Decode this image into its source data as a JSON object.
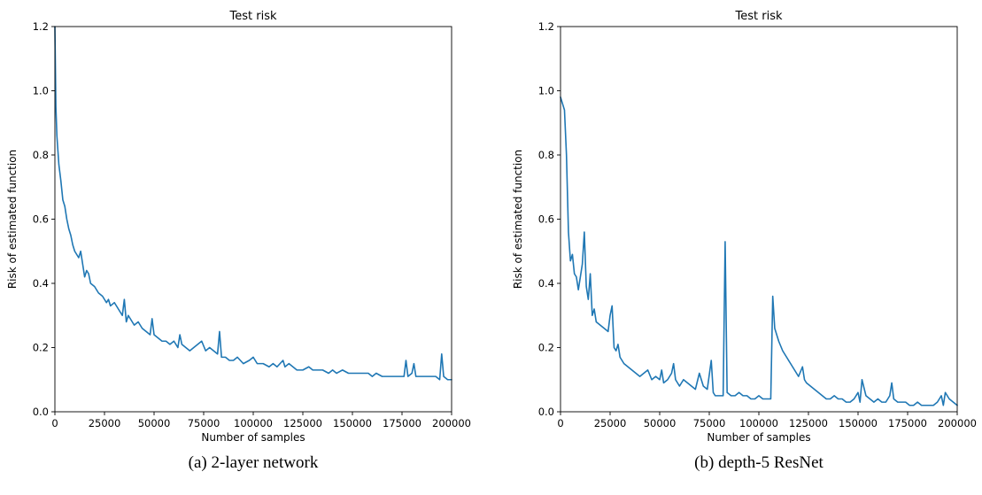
{
  "panels": [
    {
      "caption": "(a) 2-layer network"
    },
    {
      "caption": "(b) depth-5 ResNet"
    }
  ],
  "chart_data": [
    {
      "type": "line",
      "title": "Test risk",
      "xlabel": "Number of samples",
      "ylabel": "Risk of estimated function",
      "xlim": [
        0,
        200000
      ],
      "ylim": [
        0,
        1.2
      ],
      "xticks": [
        "0",
        "25000",
        "50000",
        "75000",
        "100000",
        "125000",
        "150000",
        "175000",
        "200000"
      ],
      "yticks": [
        "0.0",
        "0.2",
        "0.4",
        "0.6",
        "0.8",
        "1.0",
        "1.2"
      ],
      "grid": false,
      "color": "#1f77b4",
      "series": [
        {
          "x": [
            0,
            500,
            1000,
            2000,
            3000,
            4000,
            5000,
            6000,
            7000,
            8000,
            9000,
            10000,
            11000,
            12000,
            13000,
            14000,
            15000,
            16000,
            17000,
            18000,
            20000,
            22000,
            24000,
            26000,
            27000,
            28000,
            30000,
            32000,
            34000,
            35000,
            36000,
            37000,
            38000,
            40000,
            42000,
            44000,
            46000,
            48000,
            49000,
            50000,
            52000,
            54000,
            56000,
            58000,
            60000,
            62000,
            63000,
            64000,
            66000,
            68000,
            70000,
            72000,
            74000,
            76000,
            78000,
            80000,
            82000,
            83000,
            84000,
            86000,
            88000,
            90000,
            92000,
            95000,
            98000,
            100000,
            102000,
            105000,
            108000,
            110000,
            112000,
            115000,
            116000,
            118000,
            120000,
            122000,
            125000,
            128000,
            130000,
            132000,
            135000,
            138000,
            140000,
            142000,
            145000,
            148000,
            150000,
            152000,
            155000,
            158000,
            160000,
            162000,
            165000,
            168000,
            170000,
            172000,
            174000,
            176000,
            177000,
            178000,
            180000,
            181000,
            182000,
            185000,
            188000,
            190000,
            192000,
            194000,
            195000,
            196000,
            198000,
            200000
          ],
          "y": [
            1.2,
            0.95,
            0.86,
            0.77,
            0.72,
            0.66,
            0.64,
            0.6,
            0.57,
            0.55,
            0.52,
            0.5,
            0.49,
            0.48,
            0.5,
            0.46,
            0.42,
            0.44,
            0.43,
            0.4,
            0.39,
            0.37,
            0.36,
            0.34,
            0.35,
            0.33,
            0.34,
            0.32,
            0.3,
            0.35,
            0.28,
            0.3,
            0.29,
            0.27,
            0.28,
            0.26,
            0.25,
            0.24,
            0.29,
            0.24,
            0.23,
            0.22,
            0.22,
            0.21,
            0.22,
            0.2,
            0.24,
            0.21,
            0.2,
            0.19,
            0.2,
            0.21,
            0.22,
            0.19,
            0.2,
            0.19,
            0.18,
            0.25,
            0.17,
            0.17,
            0.16,
            0.16,
            0.17,
            0.15,
            0.16,
            0.17,
            0.15,
            0.15,
            0.14,
            0.15,
            0.14,
            0.16,
            0.14,
            0.15,
            0.14,
            0.13,
            0.13,
            0.14,
            0.13,
            0.13,
            0.13,
            0.12,
            0.13,
            0.12,
            0.13,
            0.12,
            0.12,
            0.12,
            0.12,
            0.12,
            0.11,
            0.12,
            0.11,
            0.11,
            0.11,
            0.11,
            0.11,
            0.11,
            0.16,
            0.11,
            0.12,
            0.15,
            0.11,
            0.11,
            0.11,
            0.11,
            0.11,
            0.1,
            0.18,
            0.11,
            0.1,
            0.1
          ]
        }
      ]
    },
    {
      "type": "line",
      "title": "Test risk",
      "xlabel": "Number of samples",
      "ylabel": "Risk of estimated function",
      "xlim": [
        0,
        200000
      ],
      "ylim": [
        0,
        1.2
      ],
      "xticks": [
        "0",
        "25000",
        "50000",
        "75000",
        "100000",
        "125000",
        "150000",
        "175000",
        "200000"
      ],
      "yticks": [
        "0.0",
        "0.2",
        "0.4",
        "0.6",
        "0.8",
        "1.0",
        "1.2"
      ],
      "grid": false,
      "color": "#1f77b4",
      "series": [
        {
          "x": [
            0,
            1000,
            2000,
            3000,
            4000,
            5000,
            6000,
            7000,
            8000,
            9000,
            10000,
            11000,
            12000,
            13000,
            14000,
            15000,
            16000,
            17000,
            18000,
            20000,
            22000,
            24000,
            25000,
            26000,
            27000,
            28000,
            29000,
            30000,
            32000,
            34000,
            36000,
            38000,
            40000,
            42000,
            44000,
            46000,
            48000,
            50000,
            51000,
            52000,
            54000,
            56000,
            57000,
            58000,
            60000,
            62000,
            64000,
            66000,
            68000,
            70000,
            72000,
            74000,
            76000,
            77000,
            78000,
            80000,
            82000,
            83000,
            84000,
            86000,
            88000,
            90000,
            92000,
            94000,
            96000,
            98000,
            100000,
            102000,
            104000,
            106000,
            107000,
            108000,
            110000,
            112000,
            114000,
            116000,
            118000,
            120000,
            122000,
            123000,
            124000,
            126000,
            128000,
            130000,
            132000,
            134000,
            136000,
            138000,
            140000,
            142000,
            144000,
            146000,
            148000,
            150000,
            151000,
            152000,
            154000,
            156000,
            158000,
            160000,
            162000,
            164000,
            166000,
            167000,
            168000,
            170000,
            172000,
            174000,
            176000,
            178000,
            180000,
            182000,
            184000,
            186000,
            188000,
            190000,
            192000,
            193000,
            194000,
            196000,
            198000,
            200000
          ],
          "y": [
            0.98,
            0.96,
            0.94,
            0.8,
            0.56,
            0.47,
            0.49,
            0.43,
            0.42,
            0.38,
            0.42,
            0.46,
            0.56,
            0.39,
            0.35,
            0.43,
            0.3,
            0.32,
            0.28,
            0.27,
            0.26,
            0.25,
            0.3,
            0.33,
            0.2,
            0.19,
            0.21,
            0.17,
            0.15,
            0.14,
            0.13,
            0.12,
            0.11,
            0.12,
            0.13,
            0.1,
            0.11,
            0.1,
            0.13,
            0.09,
            0.1,
            0.12,
            0.15,
            0.1,
            0.08,
            0.1,
            0.09,
            0.08,
            0.07,
            0.12,
            0.08,
            0.07,
            0.16,
            0.06,
            0.05,
            0.05,
            0.05,
            0.53,
            0.06,
            0.05,
            0.05,
            0.06,
            0.05,
            0.05,
            0.04,
            0.04,
            0.05,
            0.04,
            0.04,
            0.04,
            0.36,
            0.26,
            0.22,
            0.19,
            0.17,
            0.15,
            0.13,
            0.11,
            0.14,
            0.1,
            0.09,
            0.08,
            0.07,
            0.06,
            0.05,
            0.04,
            0.04,
            0.05,
            0.04,
            0.04,
            0.03,
            0.03,
            0.04,
            0.06,
            0.03,
            0.1,
            0.05,
            0.04,
            0.03,
            0.04,
            0.03,
            0.03,
            0.05,
            0.09,
            0.04,
            0.03,
            0.03,
            0.03,
            0.02,
            0.02,
            0.03,
            0.02,
            0.02,
            0.02,
            0.02,
            0.03,
            0.05,
            0.02,
            0.06,
            0.04,
            0.03,
            0.02
          ]
        }
      ]
    }
  ]
}
